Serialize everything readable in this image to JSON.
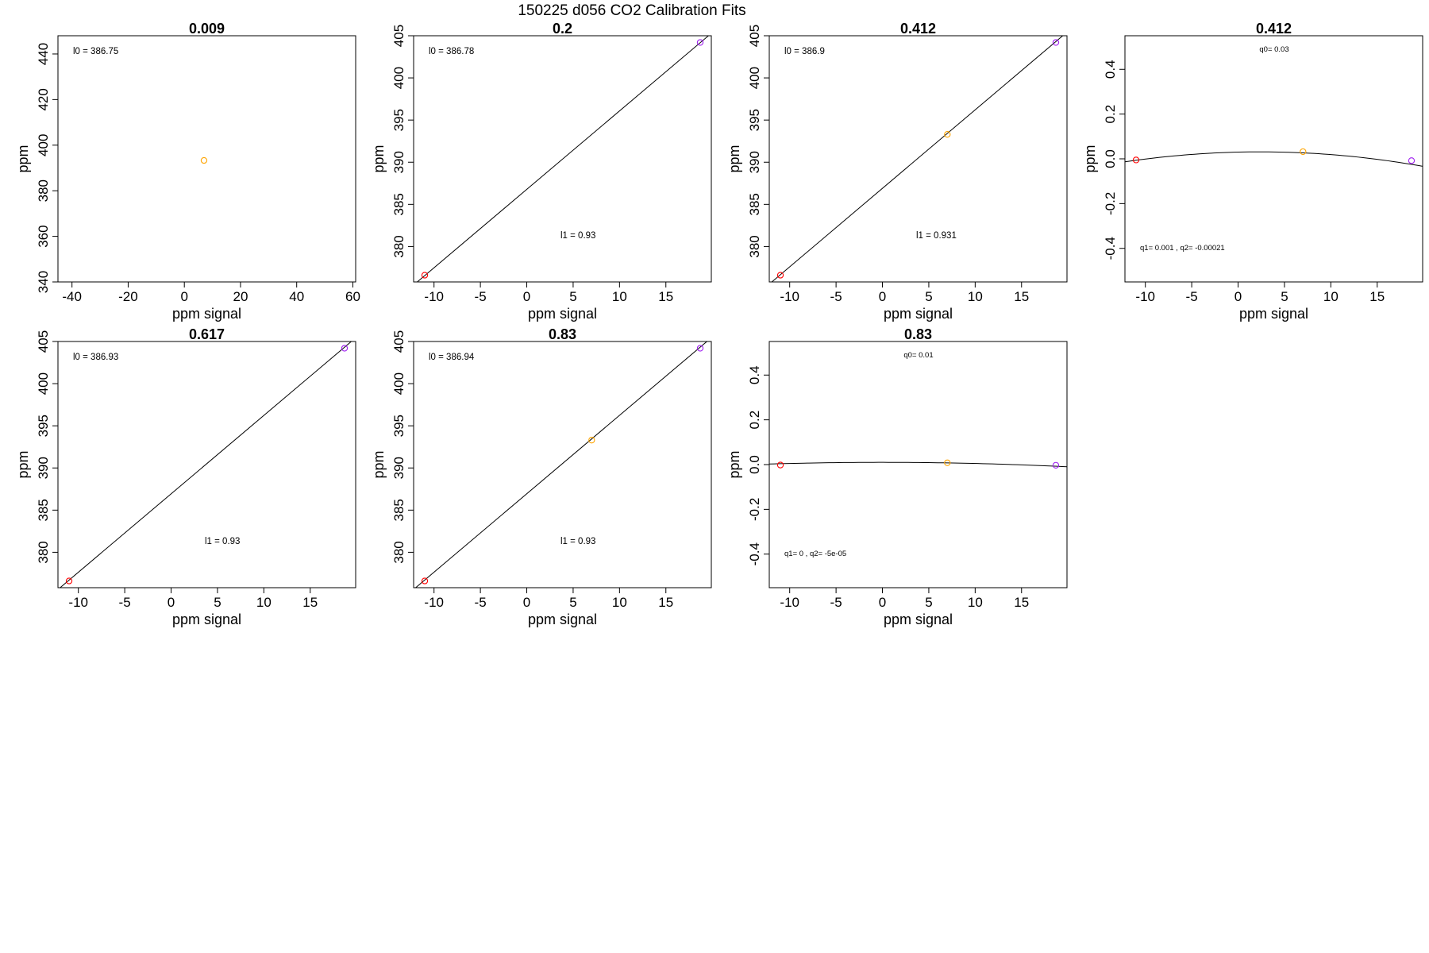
{
  "figure": {
    "title": "150225   d056   CO2 Calibration Fits"
  },
  "chart_data": [
    {
      "type": "scatter",
      "title": "0.009",
      "xlabel": "ppm signal",
      "ylabel": "ppm",
      "xlim": [
        -45,
        61
      ],
      "ylim": [
        340,
        448
      ],
      "xticks": [
        -40,
        -20,
        0,
        20,
        40,
        60
      ],
      "yticks": [
        340,
        360,
        380,
        400,
        420,
        440
      ],
      "points": [
        {
          "x": 7.0,
          "y": 393.3,
          "color": "#FFA500"
        }
      ],
      "fit": null,
      "annotations": [
        {
          "text": "l0 =  386.75",
          "pos": "top-left"
        }
      ]
    },
    {
      "type": "scatter",
      "title": "0.2",
      "xlabel": "ppm signal",
      "ylabel": "ppm",
      "xlim": [
        -12.2,
        19.9
      ],
      "ylim": [
        375.8,
        405.0
      ],
      "xticks": [
        -10,
        -5,
        0,
        5,
        10,
        15
      ],
      "yticks": [
        380,
        385,
        390,
        395,
        400,
        405
      ],
      "points": [
        {
          "x": -11.0,
          "y": 376.6,
          "color": "#FF0000"
        },
        {
          "x": 18.7,
          "y": 404.2,
          "color": "#A020F0"
        }
      ],
      "fit": {
        "kind": "linear",
        "intercept": 386.78,
        "slope": 0.93
      },
      "annotations": [
        {
          "text": "l0 =  386.78",
          "pos": "top-left"
        },
        {
          "text": "l1 =  0.93",
          "pos": "lower-center"
        }
      ]
    },
    {
      "type": "scatter",
      "title": "0.412",
      "xlabel": "ppm signal",
      "ylabel": "ppm",
      "xlim": [
        -12.2,
        19.9
      ],
      "ylim": [
        375.8,
        405.0
      ],
      "xticks": [
        -10,
        -5,
        0,
        5,
        10,
        15
      ],
      "yticks": [
        380,
        385,
        390,
        395,
        400,
        405
      ],
      "points": [
        {
          "x": -11.0,
          "y": 376.6,
          "color": "#FF0000"
        },
        {
          "x": 7.0,
          "y": 393.3,
          "color": "#FFA500"
        },
        {
          "x": 18.7,
          "y": 404.2,
          "color": "#A020F0"
        }
      ],
      "fit": {
        "kind": "linear",
        "intercept": 386.9,
        "slope": 0.931
      },
      "annotations": [
        {
          "text": "l0 =  386.9",
          "pos": "top-left"
        },
        {
          "text": "l1 =  0.931",
          "pos": "lower-center"
        }
      ]
    },
    {
      "type": "scatter",
      "title": "0.412",
      "xlabel": "ppm signal",
      "ylabel": "ppm",
      "xlim": [
        -12.2,
        19.9
      ],
      "ylim": [
        -0.55,
        0.55
      ],
      "xticks": [
        -10,
        -5,
        0,
        5,
        10,
        15
      ],
      "yticks": [
        -0.4,
        -0.2,
        0.0,
        0.2,
        0.4
      ],
      "ytick_labels": [
        "-0.4",
        "-0.2",
        "0.0",
        "0.2",
        "0.4"
      ],
      "points": [
        {
          "x": -11.0,
          "y": -0.005,
          "color": "#FF0000"
        },
        {
          "x": 7.0,
          "y": 0.032,
          "color": "#FFA500"
        },
        {
          "x": 18.7,
          "y": -0.008,
          "color": "#A020F0"
        }
      ],
      "fit": {
        "kind": "quadratic",
        "q0": 0.03,
        "q1": 0.001,
        "q2": -0.00021
      },
      "annotations": [
        {
          "text": "q0= 0.03",
          "pos": "top-center"
        },
        {
          "text": "q1= 0.001 ,  q2= -0.00021",
          "pos": "bottom-left"
        }
      ]
    },
    {
      "type": "scatter",
      "title": "0.617",
      "xlabel": "ppm signal",
      "ylabel": "ppm",
      "xlim": [
        -12.2,
        19.9
      ],
      "ylim": [
        375.8,
        405.0
      ],
      "xticks": [
        -10,
        -5,
        0,
        5,
        10,
        15
      ],
      "yticks": [
        380,
        385,
        390,
        395,
        400,
        405
      ],
      "points": [
        {
          "x": -11.0,
          "y": 376.6,
          "color": "#FF0000"
        },
        {
          "x": 18.7,
          "y": 404.2,
          "color": "#A020F0"
        }
      ],
      "fit": {
        "kind": "linear",
        "intercept": 386.93,
        "slope": 0.93
      },
      "annotations": [
        {
          "text": "l0 =  386.93",
          "pos": "top-left"
        },
        {
          "text": "l1 =  0.93",
          "pos": "lower-center"
        }
      ]
    },
    {
      "type": "scatter",
      "title": "0.83",
      "xlabel": "ppm signal",
      "ylabel": "ppm",
      "xlim": [
        -12.2,
        19.9
      ],
      "ylim": [
        375.8,
        405.0
      ],
      "xticks": [
        -10,
        -5,
        0,
        5,
        10,
        15
      ],
      "yticks": [
        380,
        385,
        390,
        395,
        400,
        405
      ],
      "points": [
        {
          "x": -11.0,
          "y": 376.6,
          "color": "#FF0000"
        },
        {
          "x": 7.0,
          "y": 393.3,
          "color": "#FFA500"
        },
        {
          "x": 18.7,
          "y": 404.2,
          "color": "#A020F0"
        }
      ],
      "fit": {
        "kind": "linear",
        "intercept": 386.94,
        "slope": 0.93
      },
      "annotations": [
        {
          "text": "l0 =  386.94",
          "pos": "top-left"
        },
        {
          "text": "l1 =  0.93",
          "pos": "lower-center"
        }
      ]
    },
    {
      "type": "scatter",
      "title": "0.83",
      "xlabel": "ppm signal",
      "ylabel": "ppm",
      "xlim": [
        -12.2,
        19.9
      ],
      "ylim": [
        -0.55,
        0.55
      ],
      "xticks": [
        -10,
        -5,
        0,
        5,
        10,
        15
      ],
      "yticks": [
        -0.4,
        -0.2,
        0.0,
        0.2,
        0.4
      ],
      "ytick_labels": [
        "-0.4",
        "-0.2",
        "0.0",
        "0.2",
        "0.4"
      ],
      "points": [
        {
          "x": -11.0,
          "y": -0.002,
          "color": "#FF0000"
        },
        {
          "x": 7.0,
          "y": 0.008,
          "color": "#FFA500"
        },
        {
          "x": 18.7,
          "y": -0.003,
          "color": "#A020F0"
        }
      ],
      "fit": {
        "kind": "quadratic",
        "q0": 0.01,
        "q1": 0,
        "q2": -5e-05
      },
      "annotations": [
        {
          "text": "q0= 0.01",
          "pos": "top-center"
        },
        {
          "text": "q1= 0 ,  q2= -5e-05",
          "pos": "bottom-left"
        }
      ]
    }
  ]
}
